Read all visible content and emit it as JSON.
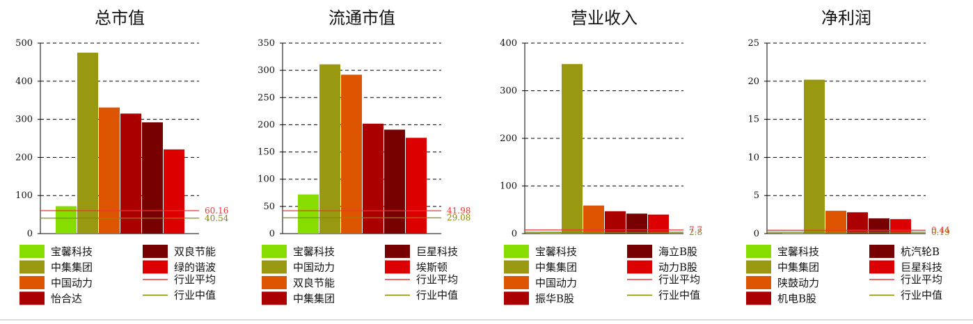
{
  "colors": {
    "company": [
      "#88dd00",
      "#999911",
      "#dd5500",
      "#aa0000",
      "#770000",
      "#dd0000"
    ],
    "industry_avg": "#ee3333",
    "industry_median": "#888800"
  },
  "legend_ref_labels": [
    "行业平均",
    "行业中值"
  ],
  "chart_data": [
    {
      "type": "bar",
      "title": "总市值",
      "categories": [
        "宝馨科技",
        "中集集团",
        "中国动力",
        "怡合达",
        "双良节能",
        "绿的谐波"
      ],
      "values": [
        72,
        475,
        331,
        315,
        292,
        221
      ],
      "ylim": [
        0,
        500
      ],
      "yticks": [
        0,
        100,
        200,
        300,
        400,
        500
      ],
      "industry_avg": 60.16,
      "industry_median": 40.54,
      "avg_label": "60.16",
      "median_label": "40.54",
      "grid": true
    },
    {
      "type": "bar",
      "title": "流通市值",
      "categories": [
        "宝馨科技",
        "中国动力",
        "双良节能",
        "中集集团",
        "巨星科技",
        "埃斯顿"
      ],
      "values": [
        72,
        311,
        292,
        202,
        191,
        176
      ],
      "ylim": [
        0,
        350
      ],
      "yticks": [
        0,
        50,
        100,
        150,
        200,
        250,
        300,
        350
      ],
      "industry_avg": 41.98,
      "industry_median": 29.08,
      "avg_label": "41.98",
      "median_label": "29.08",
      "grid": true
    },
    {
      "type": "bar",
      "title": "营业收入",
      "categories": [
        "宝馨科技",
        "中集集团",
        "中国动力",
        "振华B股",
        "海立B股",
        "动力B股"
      ],
      "values": [
        3,
        356,
        59,
        47,
        42,
        40
      ],
      "ylim": [
        0,
        400
      ],
      "yticks": [
        0,
        100,
        200,
        300,
        400
      ],
      "industry_avg": 7.7,
      "industry_median": 2.8,
      "avg_label": "7.7",
      "median_label": "2.8",
      "grid": true
    },
    {
      "type": "bar",
      "title": "净利润",
      "categories": [
        "宝馨科技",
        "中集集团",
        "陕鼓动力",
        "机电B股",
        "杭汽轮B",
        "巨星科技"
      ],
      "values": [
        0.1,
        20.2,
        3.0,
        2.8,
        2.0,
        1.9
      ],
      "ylim": [
        0,
        25
      ],
      "yticks": [
        0,
        5,
        10,
        15,
        20,
        25
      ],
      "industry_avg": 0.44,
      "industry_median": 0.19,
      "avg_label": "0.44",
      "median_label": "0.19",
      "grid": true
    }
  ]
}
